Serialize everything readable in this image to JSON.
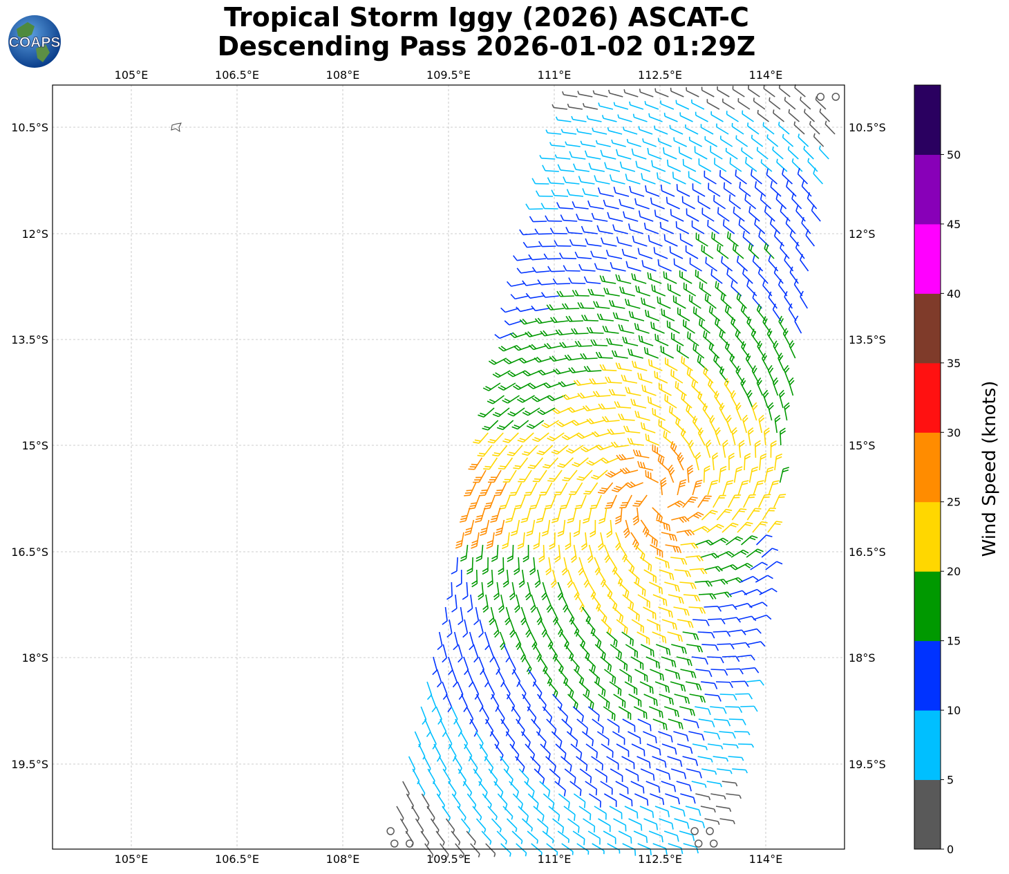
{
  "header": {
    "line1": "Tropical Storm Iggy (2026) ASCAT-C",
    "line2": "Descending Pass 2026-01-02 01:29Z"
  },
  "logo": {
    "text": "COAPS"
  },
  "map": {
    "lon_ticks": [
      "105°E",
      "106.5°E",
      "108°E",
      "109.5°E",
      "111°E",
      "112.5°E",
      "114°E"
    ],
    "lat_ticks": [
      "10.5°S",
      "12°S",
      "13.5°S",
      "15°S",
      "16.5°S",
      "18°S",
      "19.5°S"
    ]
  },
  "colorbar": {
    "label": "Wind Speed (knots)",
    "ticks": [
      "0",
      "5",
      "10",
      "15",
      "20",
      "25",
      "30",
      "35",
      "40",
      "45",
      "50"
    ],
    "colors": [
      "#595959",
      "#00bfff",
      "#0033ff",
      "#009900",
      "#ffd700",
      "#ff8c00",
      "#ff1111",
      "#7f3b2a",
      "#ff00ff",
      "#8800b8",
      "#2a0060"
    ]
  }
}
